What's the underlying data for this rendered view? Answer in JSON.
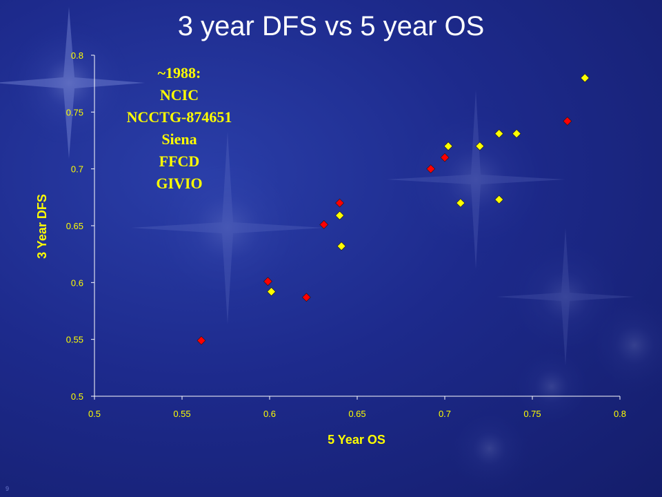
{
  "slide": {
    "title": "3 year DFS vs 5 year OS",
    "note_lines": [
      "~1988:",
      "NCIC",
      "NCCTG-874651",
      "Siena",
      "FFCD",
      "GIVIO"
    ],
    "slide_number": "9"
  },
  "colors": {
    "background": "#1d2a8c",
    "title": "#ffffff",
    "note": "#ffff00",
    "axis_label": "#ffff00",
    "tick_label": "#ffff00",
    "axis_line": "#ffffff",
    "series_red": "#ff0000",
    "series_yellow": "#ffff00"
  },
  "chart_data": {
    "type": "scatter",
    "title": "",
    "xlabel": "5 Year OS",
    "ylabel": "3 Year DFS",
    "xlim": [
      0.5,
      0.8
    ],
    "ylim": [
      0.5,
      0.8
    ],
    "xticks": [
      "0.5",
      "0.55",
      "0.6",
      "0.65",
      "0.7",
      "0.75",
      "0.8"
    ],
    "yticks": [
      "0.5",
      "0.55",
      "0.6",
      "0.65",
      "0.7",
      "0.75",
      "0.8"
    ],
    "grid": false,
    "legend": "none",
    "series": [
      {
        "color": "#ff0000",
        "marker": "diamond",
        "points": [
          {
            "x": 0.561,
            "y": 0.549
          },
          {
            "x": 0.599,
            "y": 0.601
          },
          {
            "x": 0.621,
            "y": 0.587
          },
          {
            "x": 0.631,
            "y": 0.651
          },
          {
            "x": 0.64,
            "y": 0.67
          },
          {
            "x": 0.692,
            "y": 0.7
          },
          {
            "x": 0.7,
            "y": 0.71
          },
          {
            "x": 0.77,
            "y": 0.742
          }
        ]
      },
      {
        "color": "#ffff00",
        "marker": "diamond",
        "points": [
          {
            "x": 0.601,
            "y": 0.592
          },
          {
            "x": 0.64,
            "y": 0.659
          },
          {
            "x": 0.641,
            "y": 0.632
          },
          {
            "x": 0.702,
            "y": 0.72
          },
          {
            "x": 0.709,
            "y": 0.67
          },
          {
            "x": 0.72,
            "y": 0.72
          },
          {
            "x": 0.731,
            "y": 0.731
          },
          {
            "x": 0.731,
            "y": 0.673
          },
          {
            "x": 0.741,
            "y": 0.731
          },
          {
            "x": 0.78,
            "y": 0.78
          }
        ]
      }
    ]
  }
}
